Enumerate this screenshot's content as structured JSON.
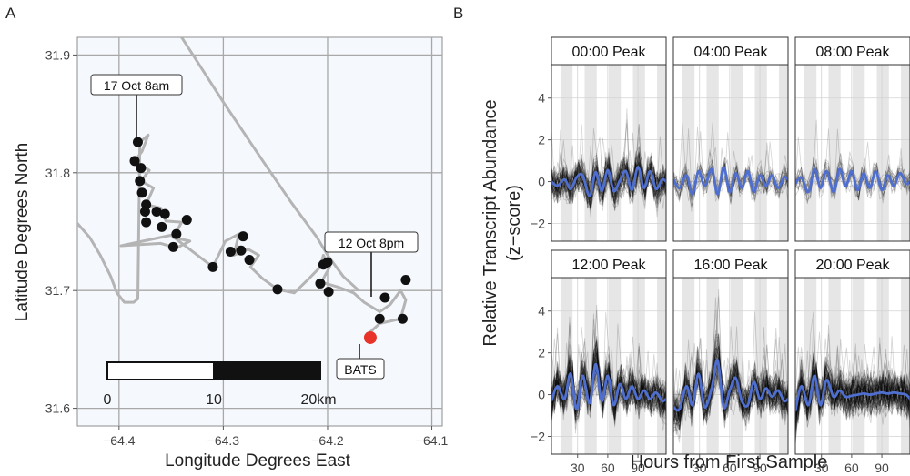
{
  "chart_data": [
    {
      "panel_label": "A",
      "type": "scatter",
      "xlabel": "Longitude Degrees East",
      "ylabel": "Latitude Degrees North",
      "xlim": [
        -64.44,
        -64.09
      ],
      "ylim": [
        31.585,
        31.915
      ],
      "xticks": [
        -64.4,
        -64.3,
        -64.2,
        -64.1
      ],
      "xtick_labels": [
        "−64.4",
        "−64.3",
        "−64.2",
        "−64.1"
      ],
      "yticks": [
        31.6,
        31.7,
        31.8,
        31.9
      ],
      "ytick_labels": [
        "31.6",
        "31.7",
        "31.8",
        "31.9"
      ],
      "grid": true,
      "sampling_points": [
        [
          -64.382,
          31.826
        ],
        [
          -64.385,
          31.81
        ],
        [
          -64.379,
          31.804
        ],
        [
          -64.38,
          31.793
        ],
        [
          -64.378,
          31.783
        ],
        [
          -64.374,
          31.773
        ],
        [
          -64.375,
          31.767
        ],
        [
          -64.364,
          31.767
        ],
        [
          -64.374,
          31.758
        ],
        [
          -64.356,
          31.765
        ],
        [
          -64.359,
          31.754
        ],
        [
          -64.335,
          31.76
        ],
        [
          -64.345,
          31.748
        ],
        [
          -64.348,
          31.737
        ],
        [
          -64.31,
          31.72
        ],
        [
          -64.293,
          31.733
        ],
        [
          -64.281,
          31.746
        ],
        [
          -64.283,
          31.734
        ],
        [
          -64.275,
          31.726
        ],
        [
          -64.248,
          31.701
        ],
        [
          -64.204,
          31.722
        ],
        [
          -64.2,
          31.724
        ],
        [
          -64.207,
          31.706
        ],
        [
          -64.199,
          31.699
        ],
        [
          -64.145,
          31.694
        ],
        [
          -64.125,
          31.709
        ],
        [
          -64.15,
          31.676
        ],
        [
          -64.128,
          31.676
        ]
      ],
      "track": [
        [
          -64.44,
          31.757
        ],
        [
          -64.428,
          31.745
        ],
        [
          -64.418,
          31.73
        ],
        [
          -64.408,
          31.712
        ],
        [
          -64.402,
          31.698
        ],
        [
          -64.395,
          31.69
        ],
        [
          -64.388,
          31.69
        ],
        [
          -64.391,
          31.69
        ],
        [
          -64.386,
          31.69
        ],
        [
          -64.382,
          31.693
        ],
        [
          -64.38,
          31.826
        ],
        [
          -64.372,
          31.832
        ],
        [
          -64.378,
          31.818
        ],
        [
          -64.385,
          31.81
        ],
        [
          -64.371,
          31.802
        ],
        [
          -64.379,
          31.793
        ],
        [
          -64.367,
          31.787
        ],
        [
          -64.374,
          31.773
        ],
        [
          -64.36,
          31.77
        ],
        [
          -64.355,
          31.759
        ],
        [
          -64.34,
          31.758
        ],
        [
          -64.348,
          31.745
        ],
        [
          -64.332,
          31.742
        ],
        [
          -64.345,
          31.736
        ],
        [
          -64.36,
          31.74
        ],
        [
          -64.398,
          31.738
        ],
        [
          -64.35,
          31.747
        ],
        [
          -64.31,
          31.72
        ],
        [
          -64.298,
          31.742
        ],
        [
          -64.285,
          31.748
        ],
        [
          -64.29,
          31.73
        ],
        [
          -64.276,
          31.735
        ],
        [
          -64.266,
          31.73
        ],
        [
          -64.274,
          31.72
        ],
        [
          -64.262,
          31.71
        ],
        [
          -64.248,
          31.701
        ],
        [
          -64.232,
          31.698
        ],
        [
          -64.218,
          31.71
        ],
        [
          -64.207,
          31.72
        ],
        [
          -64.204,
          31.73
        ],
        [
          -64.198,
          31.72
        ],
        [
          -64.206,
          31.707
        ],
        [
          -64.19,
          31.703
        ],
        [
          -64.175,
          31.698
        ],
        [
          -64.165,
          31.69
        ],
        [
          -64.15,
          31.682
        ],
        [
          -64.14,
          31.688
        ],
        [
          -64.13,
          31.7
        ],
        [
          -64.125,
          31.692
        ],
        [
          -64.13,
          31.676
        ],
        [
          -64.15,
          31.672
        ],
        [
          -64.16,
          31.664
        ]
      ],
      "transit_track": [
        [
          -64.34,
          31.915
        ],
        [
          -64.3,
          31.86
        ],
        [
          -64.262,
          31.81
        ],
        [
          -64.235,
          31.775
        ],
        [
          -64.21,
          31.745
        ],
        [
          -64.2,
          31.73
        ],
        [
          -64.185,
          31.712
        ],
        [
          -64.17,
          31.7
        ]
      ],
      "annotations": [
        {
          "text": "17 Oct 8am",
          "point": [
            -64.382,
            31.826
          ]
        },
        {
          "text": "12 Oct 8pm",
          "point": [
            -64.145,
            31.694
          ]
        },
        {
          "text": "BATS",
          "point": [
            -64.159,
            31.66
          ]
        }
      ],
      "bats_station": [
        -64.159,
        31.66
      ],
      "scale_bar": {
        "labels": [
          "0",
          "10",
          "20km"
        ],
        "unit_km": 10
      }
    },
    {
      "panel_label": "B",
      "type": "line",
      "xlabel": "Hours from First Sample",
      "ylabel": "Relative Transcript Abundance (z−score)",
      "ylabel_lines": [
        "Relative Transcript Abundance",
        "(z−score)"
      ],
      "xlim": [
        4,
        118
      ],
      "ylim": [
        -2.85,
        5.6
      ],
      "xticks": [
        30,
        60,
        90
      ],
      "xtick_labels": [
        "30",
        "60",
        "90"
      ],
      "yticks": [
        -2,
        0,
        2,
        4
      ],
      "ytick_labels": [
        "−2",
        "0",
        "2",
        "4"
      ],
      "night_bands": [
        [
          13,
          25
        ],
        [
          37,
          49
        ],
        [
          61,
          73
        ],
        [
          85,
          97
        ],
        [
          109,
          118
        ]
      ],
      "panels": [
        {
          "title": "00:00 Peak",
          "trace_count": 70,
          "spread": 0.65,
          "mean_x": [
            4,
            10,
            17,
            23,
            29,
            35,
            42,
            48,
            54,
            60,
            66,
            72,
            78,
            84,
            90,
            96,
            102,
            108,
            114,
            118
          ],
          "mean_y": [
            0.0,
            -0.2,
            0.1,
            -0.35,
            0.2,
            0.3,
            -0.7,
            0.45,
            -0.45,
            0.55,
            -0.45,
            0.05,
            0.5,
            -0.4,
            0.7,
            -0.3,
            0.5,
            -0.35,
            0.1,
            0.0
          ]
        },
        {
          "title": "04:00 Peak",
          "trace_count": 25,
          "spread": 0.45,
          "mean_x": [
            4,
            10,
            17,
            23,
            29,
            35,
            42,
            48,
            54,
            60,
            66,
            72,
            78,
            84,
            90,
            96,
            102,
            108,
            114,
            118
          ],
          "mean_y": [
            0.1,
            -0.3,
            0.3,
            -0.6,
            0.5,
            -0.2,
            0.6,
            -0.6,
            0.7,
            -0.5,
            0.4,
            -0.3,
            0.5,
            -0.5,
            0.3,
            -0.2,
            0.3,
            -0.3,
            0.2,
            0.1
          ]
        },
        {
          "title": "08:00 Peak",
          "trace_count": 20,
          "spread": 0.45,
          "mean_x": [
            4,
            10,
            17,
            23,
            29,
            35,
            42,
            48,
            54,
            60,
            66,
            72,
            78,
            84,
            90,
            96,
            102,
            108,
            114,
            118
          ],
          "mean_y": [
            -0.1,
            0.2,
            -0.5,
            0.6,
            -0.3,
            0.5,
            -0.5,
            0.6,
            -0.2,
            0.5,
            -0.4,
            0.4,
            -0.3,
            0.5,
            -0.4,
            0.3,
            -0.2,
            0.4,
            -0.1,
            0.0
          ]
        },
        {
          "title": "12:00 Peak",
          "trace_count": 80,
          "spread": 0.7,
          "mean_x": [
            4,
            10,
            17,
            23,
            29,
            35,
            42,
            48,
            54,
            60,
            66,
            72,
            78,
            84,
            90,
            96,
            102,
            108,
            114,
            118
          ],
          "mean_y": [
            -0.3,
            0.4,
            -0.2,
            1.0,
            -0.7,
            0.9,
            -0.4,
            1.45,
            -0.3,
            0.9,
            -0.5,
            0.5,
            -0.2,
            0.4,
            -0.2,
            0.2,
            -0.2,
            0.1,
            -0.3,
            -0.2
          ]
        },
        {
          "title": "16:00 Peak",
          "trace_count": 80,
          "spread": 0.7,
          "mean_x": [
            4,
            10,
            17,
            23,
            29,
            35,
            42,
            48,
            54,
            60,
            66,
            72,
            78,
            84,
            90,
            96,
            102,
            108,
            114,
            118
          ],
          "mean_y": [
            -0.6,
            -0.7,
            0.4,
            -0.5,
            1.0,
            -0.6,
            0.3,
            1.65,
            -0.6,
            0.2,
            0.8,
            -0.3,
            -0.5,
            0.6,
            -0.2,
            0.3,
            -0.1,
            0.2,
            -0.3,
            -0.2
          ]
        },
        {
          "title": "20:00 Peak",
          "trace_count": 90,
          "spread": 0.75,
          "mean_x": [
            4,
            10,
            17,
            23,
            29,
            35,
            42,
            48,
            54,
            60,
            66,
            72,
            78,
            84,
            90,
            96,
            102,
            108,
            114,
            118
          ],
          "mean_y": [
            -0.8,
            0.4,
            -0.5,
            0.9,
            -0.5,
            0.7,
            -0.1,
            0.2,
            -0.1,
            -0.05,
            0.0,
            0.05,
            0.0,
            0.05,
            0.1,
            0.05,
            0.1,
            0.05,
            0.0,
            -0.2
          ]
        }
      ]
    }
  ]
}
